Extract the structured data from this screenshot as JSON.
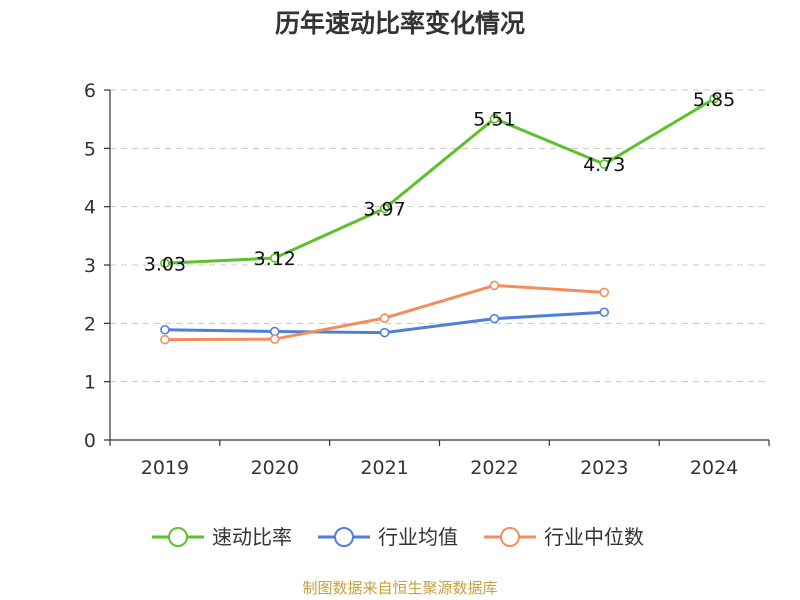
{
  "chart_data": {
    "type": "line",
    "title": "历年速动比率变化情况",
    "categories": [
      "2019",
      "2020",
      "2021",
      "2022",
      "2023",
      "2024"
    ],
    "ylim": [
      0,
      6
    ],
    "yticks": [
      0,
      1,
      2,
      3,
      4,
      5,
      6
    ],
    "grid": true,
    "legend_position": "bottom",
    "series": [
      {
        "name": "速动比率",
        "color": "#5cc12a",
        "show_labels": true,
        "values": [
          3.03,
          3.12,
          3.97,
          5.51,
          4.73,
          5.85
        ],
        "labels": [
          "3.03",
          "3.12",
          "3.97",
          "5.51",
          "4.73",
          "5.85"
        ]
      },
      {
        "name": "行业均值",
        "color": "#4e7fdb",
        "show_labels": false,
        "values": [
          1.89,
          1.86,
          1.84,
          2.08,
          2.19,
          null
        ]
      },
      {
        "name": "行业中位数",
        "color": "#f48d5c",
        "show_labels": false,
        "values": [
          1.72,
          1.73,
          2.09,
          2.65,
          2.53,
          null
        ]
      }
    ]
  },
  "source": "制图数据来自恒生聚源数据库"
}
